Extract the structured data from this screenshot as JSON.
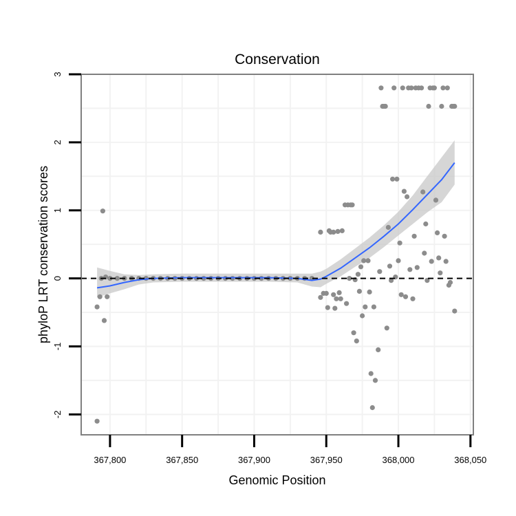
{
  "chart_data": {
    "type": "scatter",
    "title": "Conservation",
    "xlabel": "Genomic Position",
    "ylabel": "phyloP LRT conservation scores",
    "xlim": [
      367780,
      368052
    ],
    "ylim": [
      -2.3,
      3.0
    ],
    "xticks": [
      367800,
      367850,
      367900,
      367950,
      368000,
      368050
    ],
    "xtick_labels": [
      "367,800",
      "367,850",
      "367,900",
      "367,950",
      "368,000",
      "368,050"
    ],
    "yticks": [
      -2,
      -1,
      0,
      1,
      2,
      3
    ],
    "ytick_labels": [
      "-2",
      "-1",
      "0",
      "1",
      "2",
      "3"
    ],
    "grid": true,
    "reference_line": {
      "y": 0,
      "style": "dashed",
      "color": "#000000"
    },
    "colors": {
      "points": "#8c8c8c",
      "smooth": "#3366ff",
      "ribbon": "#c8c8c8",
      "panel_border": "#7f7f7f",
      "grid": "#f2f2f2"
    },
    "points": [
      {
        "x": 367791,
        "y": -2.1
      },
      {
        "x": 367791,
        "y": -0.42
      },
      {
        "x": 367793,
        "y": -0.27
      },
      {
        "x": 367794,
        "y": 0.0
      },
      {
        "x": 367795,
        "y": 0.99
      },
      {
        "x": 367796,
        "y": -0.62
      },
      {
        "x": 367797,
        "y": 0.02
      },
      {
        "x": 367798,
        "y": -0.27
      },
      {
        "x": 367800,
        "y": 0.0
      },
      {
        "x": 367805,
        "y": 0.0
      },
      {
        "x": 367810,
        "y": 0.0
      },
      {
        "x": 367815,
        "y": 0.0
      },
      {
        "x": 367820,
        "y": 0.0
      },
      {
        "x": 367825,
        "y": 0.0
      },
      {
        "x": 367830,
        "y": 0.0
      },
      {
        "x": 367835,
        "y": 0.0
      },
      {
        "x": 367840,
        "y": 0.0
      },
      {
        "x": 367845,
        "y": 0.0
      },
      {
        "x": 367850,
        "y": 0.0
      },
      {
        "x": 367855,
        "y": 0.0
      },
      {
        "x": 367860,
        "y": 0.0
      },
      {
        "x": 367865,
        "y": 0.0
      },
      {
        "x": 367870,
        "y": 0.0
      },
      {
        "x": 367875,
        "y": 0.0
      },
      {
        "x": 367880,
        "y": 0.0
      },
      {
        "x": 367885,
        "y": 0.0
      },
      {
        "x": 367890,
        "y": 0.0
      },
      {
        "x": 367895,
        "y": 0.0
      },
      {
        "x": 367900,
        "y": 0.0
      },
      {
        "x": 367905,
        "y": 0.0
      },
      {
        "x": 367910,
        "y": 0.0
      },
      {
        "x": 367915,
        "y": 0.0
      },
      {
        "x": 367920,
        "y": 0.0
      },
      {
        "x": 367925,
        "y": 0.0
      },
      {
        "x": 367930,
        "y": 0.0
      },
      {
        "x": 367935,
        "y": 0.0
      },
      {
        "x": 367940,
        "y": 0.0
      },
      {
        "x": 367946,
        "y": 0.68
      },
      {
        "x": 367946,
        "y": -0.28
      },
      {
        "x": 367948,
        "y": -0.22
      },
      {
        "x": 367950,
        "y": -0.22
      },
      {
        "x": 367951,
        "y": -0.43
      },
      {
        "x": 367952,
        "y": 0.7
      },
      {
        "x": 367953,
        "y": 0.68
      },
      {
        "x": 367955,
        "y": 0.68
      },
      {
        "x": 367955,
        "y": -0.24
      },
      {
        "x": 367956,
        "y": -0.44
      },
      {
        "x": 367957,
        "y": -0.3
      },
      {
        "x": 367958,
        "y": 0.69
      },
      {
        "x": 367959,
        "y": -0.21
      },
      {
        "x": 367960,
        "y": -0.3
      },
      {
        "x": 367961,
        "y": 0.7
      },
      {
        "x": 367963,
        "y": 1.08
      },
      {
        "x": 367964,
        "y": -0.37
      },
      {
        "x": 367965,
        "y": 1.08
      },
      {
        "x": 367966,
        "y": 0.0
      },
      {
        "x": 367967,
        "y": 1.08
      },
      {
        "x": 367968,
        "y": 1.08
      },
      {
        "x": 367969,
        "y": -0.8
      },
      {
        "x": 367970,
        "y": -0.02
      },
      {
        "x": 367971,
        "y": -0.92
      },
      {
        "x": 367972,
        "y": 0.06
      },
      {
        "x": 367973,
        "y": -0.19
      },
      {
        "x": 367974,
        "y": 0.17
      },
      {
        "x": 367975,
        "y": -0.55
      },
      {
        "x": 367976,
        "y": 0.26
      },
      {
        "x": 367977,
        "y": -0.42
      },
      {
        "x": 367979,
        "y": 0.26
      },
      {
        "x": 367980,
        "y": -0.2
      },
      {
        "x": 367981,
        "y": -1.4
      },
      {
        "x": 367982,
        "y": -1.9
      },
      {
        "x": 367983,
        "y": -0.42
      },
      {
        "x": 367984,
        "y": -1.5
      },
      {
        "x": 367986,
        "y": -1.05
      },
      {
        "x": 367987,
        "y": 0.1
      },
      {
        "x": 367988,
        "y": 2.8
      },
      {
        "x": 367989,
        "y": 2.53
      },
      {
        "x": 367990,
        "y": 2.53
      },
      {
        "x": 367991,
        "y": 2.53
      },
      {
        "x": 367992,
        "y": -0.73
      },
      {
        "x": 367993,
        "y": 0.75
      },
      {
        "x": 367994,
        "y": 0.18
      },
      {
        "x": 367995,
        "y": -0.03
      },
      {
        "x": 367996,
        "y": 1.46
      },
      {
        "x": 367997,
        "y": 2.8
      },
      {
        "x": 367998,
        "y": 0.02
      },
      {
        "x": 367999,
        "y": 1.46
      },
      {
        "x": 368000,
        "y": 0.26
      },
      {
        "x": 368001,
        "y": 0.52
      },
      {
        "x": 368002,
        "y": -0.24
      },
      {
        "x": 368003,
        "y": 2.8
      },
      {
        "x": 368004,
        "y": 1.28
      },
      {
        "x": 368005,
        "y": -0.27
      },
      {
        "x": 368006,
        "y": 1.2
      },
      {
        "x": 368007,
        "y": 2.8
      },
      {
        "x": 368008,
        "y": 0.13
      },
      {
        "x": 368009,
        "y": 2.8
      },
      {
        "x": 368010,
        "y": -0.3
      },
      {
        "x": 368011,
        "y": 0.62
      },
      {
        "x": 368012,
        "y": 2.8
      },
      {
        "x": 368013,
        "y": 0.16
      },
      {
        "x": 368014,
        "y": 2.8
      },
      {
        "x": 368016,
        "y": 2.8
      },
      {
        "x": 368017,
        "y": 1.27
      },
      {
        "x": 368018,
        "y": 0.37
      },
      {
        "x": 368019,
        "y": 0.8
      },
      {
        "x": 368020,
        "y": -0.03
      },
      {
        "x": 368021,
        "y": 2.53
      },
      {
        "x": 368022,
        "y": 2.8
      },
      {
        "x": 368023,
        "y": 0.25
      },
      {
        "x": 368024,
        "y": 2.8
      },
      {
        "x": 368025,
        "y": 2.8
      },
      {
        "x": 368026,
        "y": 1.15
      },
      {
        "x": 368027,
        "y": 0.67
      },
      {
        "x": 368028,
        "y": 0.3
      },
      {
        "x": 368029,
        "y": 0.08
      },
      {
        "x": 368030,
        "y": 2.53
      },
      {
        "x": 368031,
        "y": 2.8
      },
      {
        "x": 368032,
        "y": 0.62
      },
      {
        "x": 368033,
        "y": 0.25
      },
      {
        "x": 368034,
        "y": 2.8
      },
      {
        "x": 368035,
        "y": -0.1
      },
      {
        "x": 368036,
        "y": -0.06
      },
      {
        "x": 368037,
        "y": 2.53
      },
      {
        "x": 368038,
        "y": 2.53
      },
      {
        "x": 368039,
        "y": -0.48
      },
      {
        "x": 368039,
        "y": 2.53
      }
    ],
    "smooth_line": [
      {
        "x": 367791,
        "y": -0.14,
        "lo": -0.28,
        "hi": 0.16
      },
      {
        "x": 367800,
        "y": -0.11,
        "lo": -0.22,
        "hi": 0.11
      },
      {
        "x": 367810,
        "y": -0.06,
        "lo": -0.16,
        "hi": 0.06
      },
      {
        "x": 367820,
        "y": -0.02,
        "lo": -0.09,
        "hi": 0.05
      },
      {
        "x": 367830,
        "y": 0.0,
        "lo": -0.06,
        "hi": 0.06
      },
      {
        "x": 367850,
        "y": 0.01,
        "lo": -0.05,
        "hi": 0.07
      },
      {
        "x": 367870,
        "y": 0.01,
        "lo": -0.05,
        "hi": 0.07
      },
      {
        "x": 367890,
        "y": 0.01,
        "lo": -0.05,
        "hi": 0.07
      },
      {
        "x": 367910,
        "y": 0.01,
        "lo": -0.05,
        "hi": 0.07
      },
      {
        "x": 367930,
        "y": 0.0,
        "lo": -0.06,
        "hi": 0.07
      },
      {
        "x": 367940,
        "y": -0.03,
        "lo": -0.12,
        "hi": 0.07
      },
      {
        "x": 367946,
        "y": -0.01,
        "lo": -0.13,
        "hi": 0.1
      },
      {
        "x": 367950,
        "y": 0.03,
        "lo": -0.08,
        "hi": 0.14
      },
      {
        "x": 367960,
        "y": 0.15,
        "lo": 0.03,
        "hi": 0.28
      },
      {
        "x": 367970,
        "y": 0.3,
        "lo": 0.17,
        "hi": 0.44
      },
      {
        "x": 367980,
        "y": 0.45,
        "lo": 0.3,
        "hi": 0.6
      },
      {
        "x": 367990,
        "y": 0.62,
        "lo": 0.46,
        "hi": 0.78
      },
      {
        "x": 368000,
        "y": 0.8,
        "lo": 0.63,
        "hi": 0.98
      },
      {
        "x": 368010,
        "y": 1.01,
        "lo": 0.8,
        "hi": 1.22
      },
      {
        "x": 368020,
        "y": 1.23,
        "lo": 0.97,
        "hi": 1.5
      },
      {
        "x": 368030,
        "y": 1.45,
        "lo": 1.12,
        "hi": 1.78
      },
      {
        "x": 368039,
        "y": 1.7,
        "lo": 1.38,
        "hi": 2.03
      }
    ]
  }
}
